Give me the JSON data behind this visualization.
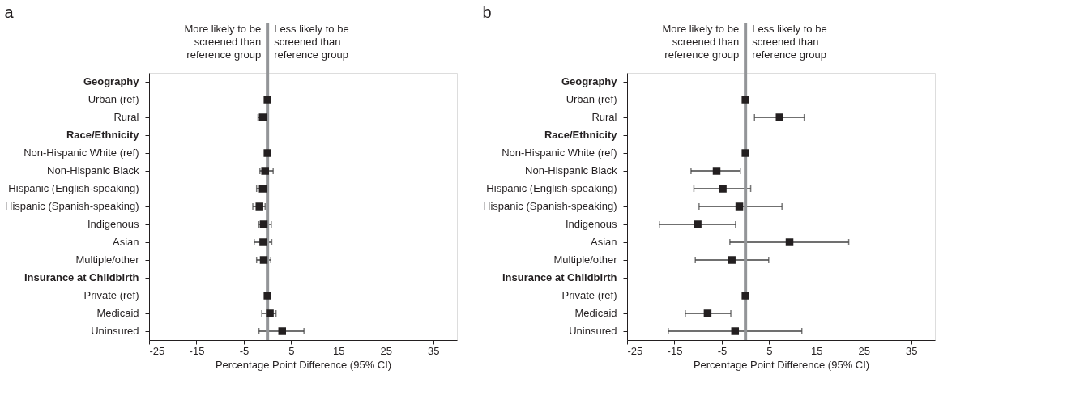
{
  "chart_data": [
    {
      "type": "scatter",
      "orientation": "horizontal",
      "title": "a",
      "xlabel": "Percentage Point Difference (95% CI)",
      "categories": [
        "Geography",
        "Urban (ref)",
        "Rural",
        "Race/Ethnicity",
        "Non-Hispanic White (ref)",
        "Non-Hispanic Black",
        "Hispanic (English-speaking)",
        "Hispanic (Spanish-speaking)",
        "Indigenous",
        "Asian",
        "Multiple/other",
        "Insurance at Childbirth",
        "Private (ref)",
        "Medicaid",
        "Uninsured"
      ],
      "values": [
        null,
        0,
        -1.0,
        null,
        0,
        -0.5,
        -1.0,
        -1.7,
        -0.8,
        -0.9,
        -0.8,
        null,
        0,
        0.5,
        3.1
      ],
      "errors": [
        null,
        null,
        [
          -2.0,
          -0.2
        ],
        null,
        null,
        [
          -1.6,
          1.2
        ],
        [
          -2.3,
          -0.4
        ],
        [
          -3.1,
          -0.5
        ],
        [
          -1.8,
          0.8
        ],
        [
          -2.8,
          0.9
        ],
        [
          -2.3,
          0.7
        ],
        null,
        null,
        [
          -1.2,
          1.8
        ],
        [
          -1.8,
          7.7
        ]
      ],
      "color": "#231f20",
      "marker": "square",
      "xlim": [
        -25,
        40
      ],
      "xticks": [
        -25,
        -15,
        -5,
        5,
        15,
        25,
        35
      ],
      "ref_lines": [
        {
          "axis": "x",
          "value": 0,
          "color": "#939598"
        }
      ],
      "annotations": [
        "More likely to be screened than reference group",
        "Less likely to be screened than reference group"
      ]
    },
    {
      "type": "scatter",
      "orientation": "horizontal",
      "title": "b",
      "xlabel": "Percentage Point Difference (95% CI)",
      "categories": [
        "Geography",
        "Urban (ref)",
        "Rural",
        "Race/Ethnicity",
        "Non-Hispanic White (ref)",
        "Non-Hispanic Black",
        "Hispanic (English-speaking)",
        "Hispanic (Spanish-speaking)",
        "Indigenous",
        "Asian",
        "Multiple/other",
        "Insurance at Childbirth",
        "Private (ref)",
        "Medicaid",
        "Uninsured"
      ],
      "values": [
        null,
        0,
        7.2,
        null,
        0,
        -6.1,
        -4.8,
        -1.3,
        -10.1,
        9.3,
        -2.9,
        null,
        0,
        -8.0,
        -2.2
      ],
      "errors": [
        null,
        null,
        [
          1.9,
          12.4
        ],
        null,
        null,
        [
          -11.5,
          -1.1
        ],
        [
          -10.9,
          1.1
        ],
        [
          -9.8,
          7.7
        ],
        [
          -18.2,
          -2.1
        ],
        [
          -3.3,
          21.8
        ],
        [
          -10.6,
          4.9
        ],
        null,
        null,
        [
          -12.7,
          -3.1
        ],
        [
          -16.3,
          11.9
        ]
      ],
      "color": "#231f20",
      "marker": "square",
      "xlim": [
        -25,
        40
      ],
      "xticks": [
        -25,
        -15,
        -5,
        5,
        15,
        25,
        35
      ],
      "ref_lines": [
        {
          "axis": "x",
          "value": 0,
          "color": "#939598"
        }
      ],
      "annotations": [
        "More likely to be screened than reference group",
        "Less likely to be screened than reference group"
      ]
    }
  ]
}
